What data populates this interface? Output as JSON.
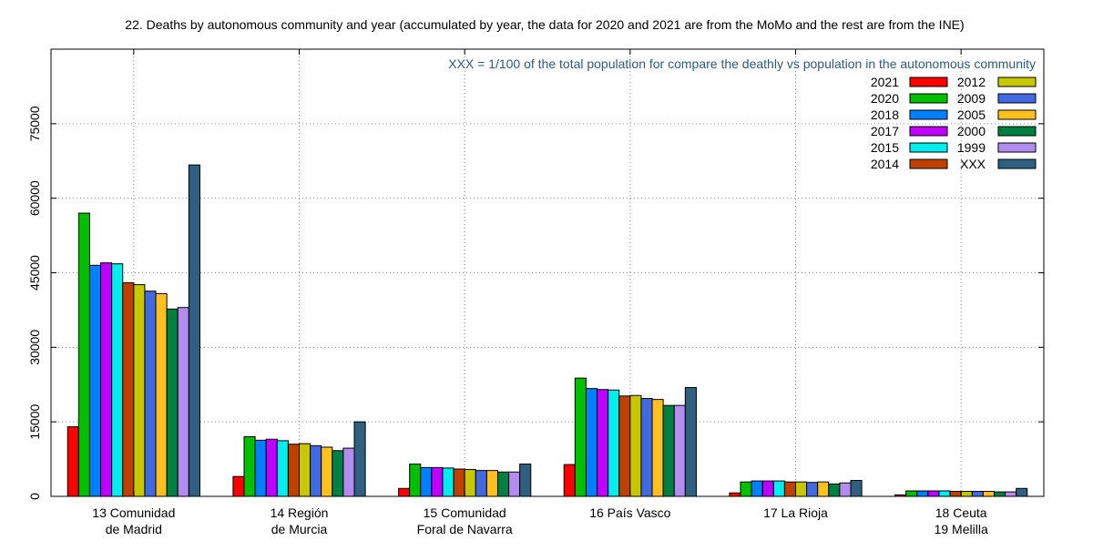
{
  "chart_data": {
    "type": "bar",
    "title": "22. Deaths by autonomous community and year (accumulated by year, the data for 2020 and 2021 are from the MoMo and the rest are from the INE)",
    "annotation": "XXX = 1/100 of the total population for compare the deathly vs population in the autonomous community",
    "xlabel": "",
    "ylabel": "",
    "ylim": [
      0,
      75000
    ],
    "yticks": [
      0,
      15000,
      30000,
      45000,
      60000,
      75000
    ],
    "grid": true,
    "legend_position": "top-right",
    "categories": [
      [
        "13 Comunidad",
        "de Madrid"
      ],
      [
        "14 Región",
        "de Murcia"
      ],
      [
        "15 Comunidad",
        "Foral de Navarra"
      ],
      [
        "16 País Vasco"
      ],
      [
        "17 La Rioja"
      ],
      [
        "18 Ceuta",
        "19 Melilla"
      ]
    ],
    "series": [
      {
        "name": "2021",
        "color": "#ff0000",
        "values": [
          14000,
          4000,
          1600,
          6400,
          700,
          300
        ]
      },
      {
        "name": "2020",
        "color": "#00c000",
        "values": [
          57000,
          12000,
          6500,
          23800,
          2900,
          1100
        ]
      },
      {
        "name": "2018",
        "color": "#0080ff",
        "values": [
          46500,
          11300,
          5800,
          21700,
          3100,
          1100
        ]
      },
      {
        "name": "2017",
        "color": "#c000ff",
        "values": [
          47000,
          11500,
          5800,
          21500,
          3100,
          1100
        ]
      },
      {
        "name": "2015",
        "color": "#00eeee",
        "values": [
          46800,
          11200,
          5700,
          21400,
          3100,
          1100
        ]
      },
      {
        "name": "2014",
        "color": "#c04000",
        "values": [
          43000,
          10500,
          5500,
          20200,
          2900,
          1000
        ]
      },
      {
        "name": "2012",
        "color": "#c8c800",
        "values": [
          42600,
          10600,
          5400,
          20300,
          2900,
          1000
        ]
      },
      {
        "name": "2009",
        "color": "#4169e1",
        "values": [
          41300,
          10200,
          5200,
          19700,
          2800,
          1000
        ]
      },
      {
        "name": "2005",
        "color": "#ffc020",
        "values": [
          40800,
          9900,
          5200,
          19500,
          2900,
          1000
        ]
      },
      {
        "name": "2000",
        "color": "#008040",
        "values": [
          37700,
          9200,
          4900,
          18300,
          2500,
          900
        ]
      },
      {
        "name": "1999",
        "color": "#b48cf0",
        "values": [
          38000,
          9700,
          4900,
          18300,
          2700,
          900
        ]
      },
      {
        "name": "XXX",
        "color": "#306080",
        "values": [
          66700,
          15000,
          6500,
          21900,
          3200,
          1600
        ]
      }
    ]
  }
}
